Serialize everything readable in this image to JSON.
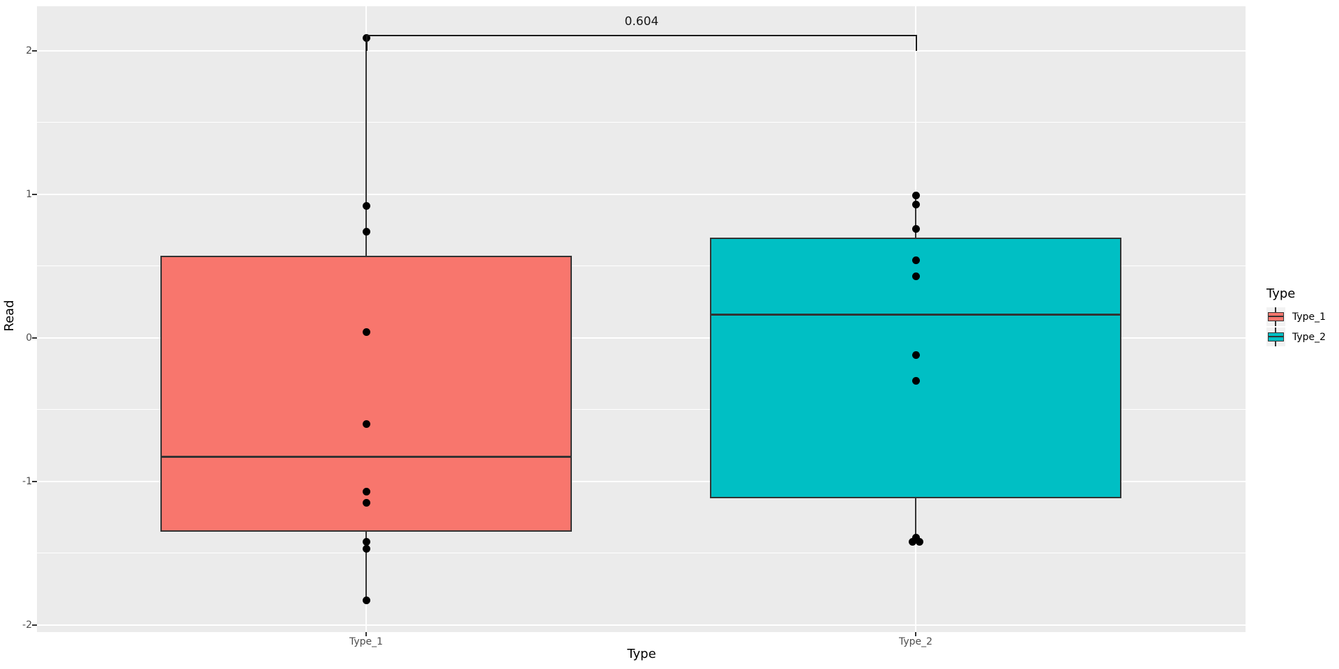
{
  "figure": {
    "background": "#FFFFFF",
    "panel_background": "#EBEBEB",
    "grid_color": "#FFFFFF",
    "box_outline_color": "#333333",
    "point_color": "#000000",
    "tick_label_color": "#4D4D4D",
    "title_color": "#000000",
    "legend_key_background": "#F2F2F2"
  },
  "chart_data": {
    "type": "boxplot",
    "title": "",
    "xlabel": "Type",
    "ylabel": "Read",
    "ylim": [
      -2.05,
      2.31
    ],
    "grid": true,
    "yticks": [
      {
        "label": "2",
        "value": 2
      },
      {
        "label": "1",
        "value": 1
      },
      {
        "label": "0",
        "value": 0
      },
      {
        "label": "-1",
        "value": -1
      },
      {
        "label": "-2",
        "value": -2
      }
    ],
    "yticks_minor": [
      1.5,
      0.5,
      -0.5,
      -1.5
    ],
    "categories": [
      "Type_1",
      "Type_2"
    ],
    "series": [
      {
        "name": "Type_1",
        "fill": "#F8766D",
        "box": {
          "whisker_high": 2.09,
          "q3": 0.57,
          "median": -0.83,
          "q1": -1.35,
          "whisker_low": -1.83
        },
        "points": [
          [
            2.09,
            0
          ],
          [
            0.92,
            0
          ],
          [
            0.74,
            0
          ],
          [
            0.04,
            0
          ],
          [
            -0.6,
            0
          ],
          [
            -1.07,
            0
          ],
          [
            -1.15,
            0
          ],
          [
            -1.42,
            0
          ],
          [
            -1.47,
            0
          ],
          [
            -1.83,
            0
          ]
        ]
      },
      {
        "name": "Type_2",
        "fill": "#00BFC4",
        "box": {
          "whisker_high": 0.99,
          "q3": 0.7,
          "median": 0.16,
          "q1": -1.12,
          "whisker_low": -1.42
        },
        "points": [
          [
            0.99,
            0
          ],
          [
            0.93,
            0
          ],
          [
            0.76,
            0
          ],
          [
            0.54,
            0
          ],
          [
            0.43,
            0
          ],
          [
            -0.12,
            0
          ],
          [
            -0.3,
            0
          ],
          [
            -1.39,
            0
          ],
          [
            -1.42,
            -5
          ],
          [
            -1.42,
            5
          ]
        ]
      }
    ],
    "annotation": {
      "label": "0.604",
      "y": 2.11,
      "compares": [
        "Type_1",
        "Type_2"
      ]
    },
    "legend": {
      "title": "Type",
      "position": "right",
      "entries": [
        "Type_1",
        "Type_2"
      ]
    }
  }
}
